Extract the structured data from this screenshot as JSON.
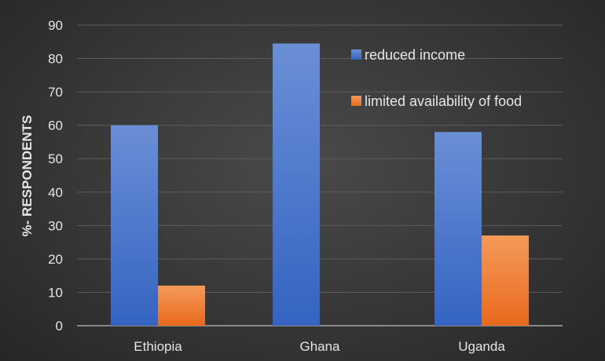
{
  "chart_data": {
    "type": "bar",
    "categories": [
      "Ethiopia",
      "Ghana",
      "Uganda"
    ],
    "series": [
      {
        "name": "reduced income",
        "values": [
          60,
          84.5,
          58
        ],
        "color": "#4f7ed1"
      },
      {
        "name": "limited availability of food",
        "values": [
          12,
          null,
          27
        ],
        "color": "#f07f35"
      }
    ],
    "title": "",
    "xlabel": "",
    "ylabel": "%- RESPONDENTS",
    "ylim": [
      0,
      90
    ],
    "yticks": [
      0,
      10,
      20,
      30,
      40,
      50,
      60,
      70,
      80,
      90
    ],
    "grid": true,
    "legend_position": "top-right"
  }
}
